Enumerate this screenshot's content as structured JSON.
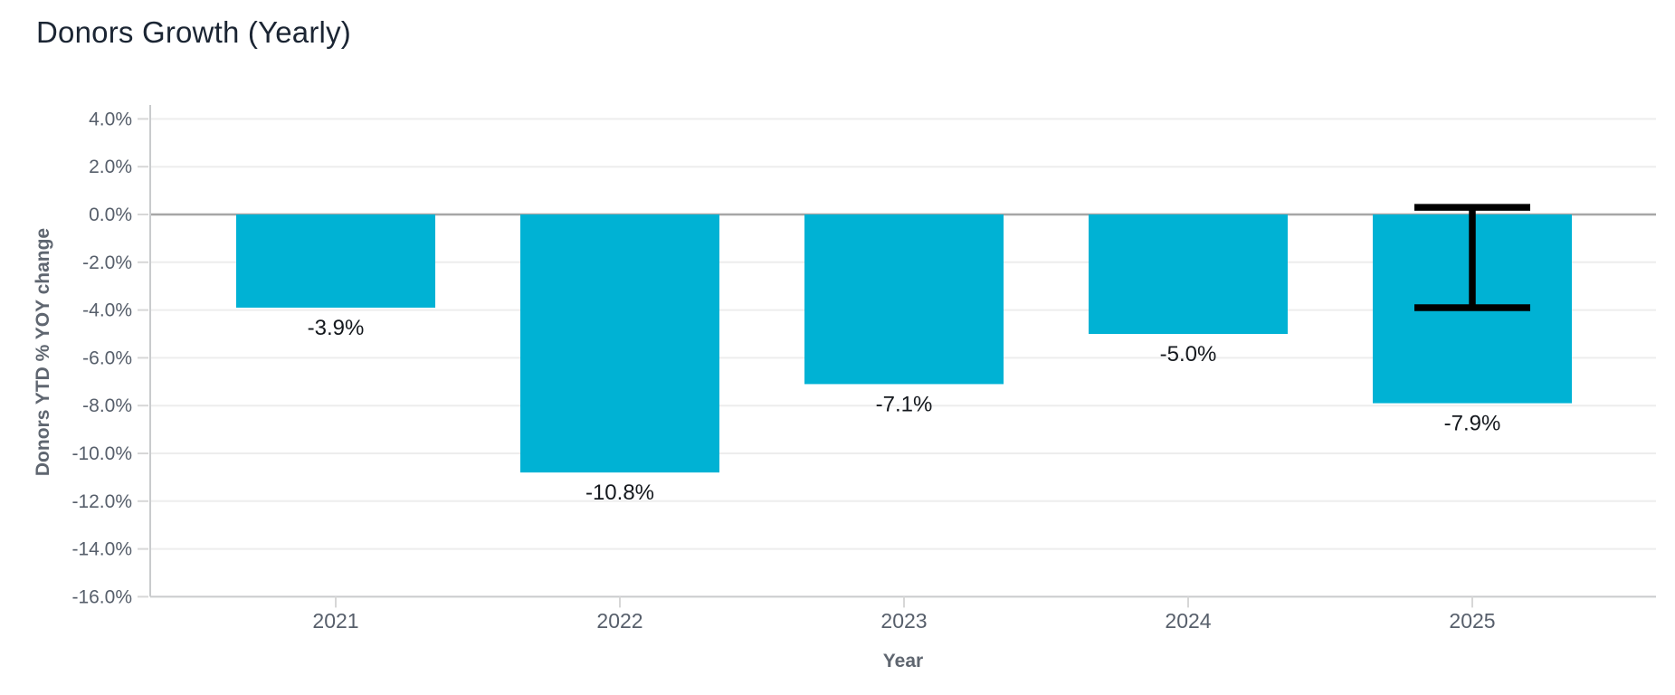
{
  "chart_data": {
    "type": "bar",
    "title": "Donors Growth (Yearly)",
    "xlabel": "Year",
    "ylabel": "Donors YTD % YOY change",
    "categories": [
      "2021",
      "2022",
      "2023",
      "2024",
      "2025"
    ],
    "values": [
      -3.9,
      -10.8,
      -7.1,
      -5.0,
      -7.9
    ],
    "bar_labels": [
      "-3.9%",
      "-10.8%",
      "-7.1%",
      "-5.0%",
      "-7.9%"
    ],
    "y_tick_values": [
      4,
      2,
      0,
      -2,
      -4,
      -6,
      -8,
      -10,
      -12,
      -14,
      -16
    ],
    "y_tick_labels": [
      "4.0%",
      "2.0%",
      "0.0%",
      "-2.0%",
      "-4.0%",
      "-6.0%",
      "-8.0%",
      "-10.0%",
      "-12.0%",
      "-14.0%",
      "-16.0%"
    ],
    "ylim": [
      -16.0,
      4.6
    ],
    "grid": true,
    "legend_position": "none",
    "error_bar": {
      "category": "2025",
      "high": 0.3,
      "low": -3.9
    },
    "styles": {
      "background": "#ffffff",
      "bar_color": "#00b2d4",
      "grid_color": "#ededed",
      "zero_line_color": "#a6a6a6",
      "axis_line_color": "#c9cbcd",
      "tick_mark_color": "#d7d7d7",
      "tick_label_color": "#575f6b",
      "data_label_color": "#14181d",
      "error_bar_color": "#000000",
      "title_color": "#1b2533",
      "axis_title_color": "#5f6670"
    }
  }
}
